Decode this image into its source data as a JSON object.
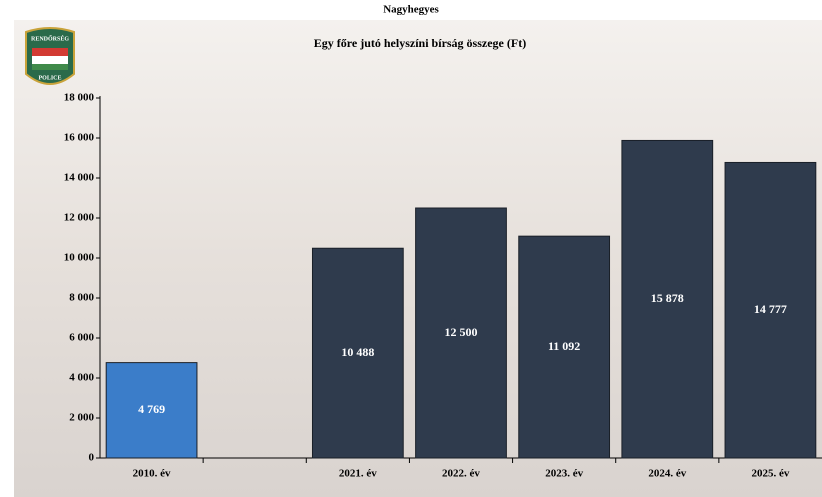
{
  "page_title": "Nagyhegyes",
  "logo": {
    "top": "RENDŐRSÉG",
    "bottom": "POLICE"
  },
  "chart_data": {
    "type": "bar",
    "title": "Egy főre jutó helyszíni bírság összege (Ft)",
    "categories": [
      "2010. év",
      null,
      "2021. év",
      "2022. év",
      "2023. év",
      "2024. év",
      "2025. év"
    ],
    "values": [
      4769,
      null,
      10488,
      12500,
      11092,
      15878,
      14777
    ],
    "value_labels": [
      "4 769",
      null,
      "10 488",
      "12 500",
      "11 092",
      "15 878",
      "14 777"
    ],
    "colors": [
      "#3b7dc9",
      null,
      "#2f3b4d",
      "#2f3b4d",
      "#2f3b4d",
      "#2f3b4d",
      "#2f3b4d"
    ],
    "ylim": [
      0,
      18000
    ],
    "yticks": [
      0,
      {
        "value": 2000,
        "label": "2 000"
      },
      {
        "value": 4000,
        "label": "4 000"
      },
      {
        "value": 6000,
        "label": "6 000"
      },
      {
        "value": 8000,
        "label": "8 000"
      },
      {
        "value": 10000,
        "label": "10 000"
      },
      {
        "value": 12000,
        "label": "12 000"
      },
      {
        "value": 14000,
        "label": "14 000"
      },
      {
        "value": 16000,
        "label": "16 000"
      },
      {
        "value": 18000,
        "label": "18 000"
      }
    ],
    "grid": false
  }
}
